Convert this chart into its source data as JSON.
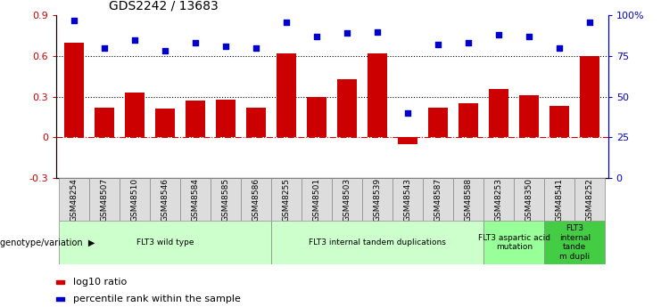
{
  "title": "GDS2242 / 13683",
  "samples": [
    "GSM48254",
    "GSM48507",
    "GSM48510",
    "GSM48546",
    "GSM48584",
    "GSM48585",
    "GSM48586",
    "GSM48255",
    "GSM48501",
    "GSM48503",
    "GSM48539",
    "GSM48543",
    "GSM48587",
    "GSM48588",
    "GSM48253",
    "GSM48350",
    "GSM48541",
    "GSM48252"
  ],
  "log10_ratio": [
    0.7,
    0.22,
    0.33,
    0.21,
    0.27,
    0.28,
    0.22,
    0.62,
    0.3,
    0.43,
    0.62,
    -0.05,
    0.22,
    0.25,
    0.36,
    0.31,
    0.23,
    0.6
  ],
  "percentile_rank": [
    97,
    80,
    85,
    78,
    83,
    81,
    80,
    96,
    87,
    89,
    90,
    40,
    82,
    83,
    88,
    87,
    80,
    96
  ],
  "bar_color": "#cc0000",
  "dot_color": "#0000cc",
  "groups": [
    {
      "label": "FLT3 wild type",
      "start": 0,
      "end": 7,
      "color": "#ccffcc"
    },
    {
      "label": "FLT3 internal tandem duplications",
      "start": 7,
      "end": 14,
      "color": "#ccffcc"
    },
    {
      "label": "FLT3 aspartic acid\nmutation",
      "start": 14,
      "end": 16,
      "color": "#99ff99"
    },
    {
      "label": "FLT3\ninternal\ntande\nm dupli",
      "start": 16,
      "end": 18,
      "color": "#44cc44"
    }
  ],
  "ylim_left": [
    -0.3,
    0.9
  ],
  "ylim_right": [
    0,
    100
  ],
  "yticks_left": [
    -0.3,
    0.0,
    0.3,
    0.6,
    0.9
  ],
  "yticks_right": [
    0,
    25,
    50,
    75,
    100
  ],
  "ytick_labels_left": [
    "-0.3",
    "0",
    "0.3",
    "0.6",
    "0.9"
  ],
  "ytick_labels_right": [
    "0",
    "25",
    "50",
    "75",
    "100%"
  ],
  "legend_labels": [
    "log10 ratio",
    "percentile rank within the sample"
  ],
  "legend_colors": [
    "#cc0000",
    "#0000cc"
  ],
  "genotype_label": "genotype/variation",
  "background_color": "#ffffff",
  "sample_bg_color": "#dddddd",
  "grid_line_color_dotted": "#000000",
  "zero_line_color": "#cc0000"
}
